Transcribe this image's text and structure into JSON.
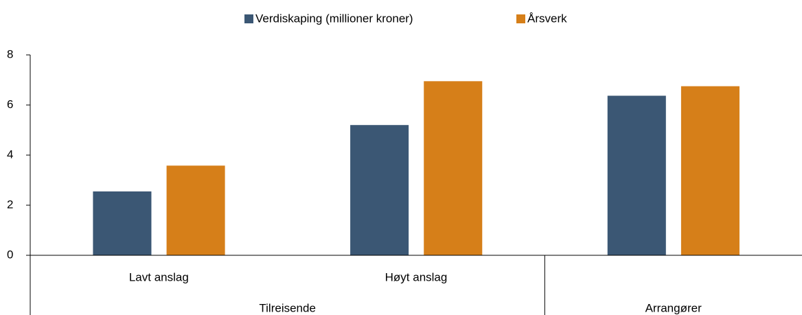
{
  "chart_data": {
    "type": "bar",
    "groups": [
      {
        "name": "Tilreisende",
        "categories": [
          "Lavt anslag",
          "Høyt anslag"
        ]
      },
      {
        "name": "Arrangører",
        "categories": [
          null
        ]
      }
    ],
    "series": [
      {
        "name": "Verdiskaping (millioner kroner)",
        "color": "#3b5774",
        "values": [
          2.55,
          5.2,
          6.37
        ]
      },
      {
        "name": "Årsverk",
        "color": "#d67f19",
        "values": [
          3.58,
          6.95,
          6.75
        ]
      }
    ],
    "ylim": [
      0,
      8
    ],
    "yticks": [
      0,
      2,
      4,
      6,
      8
    ],
    "grid": false,
    "legend": "top"
  }
}
